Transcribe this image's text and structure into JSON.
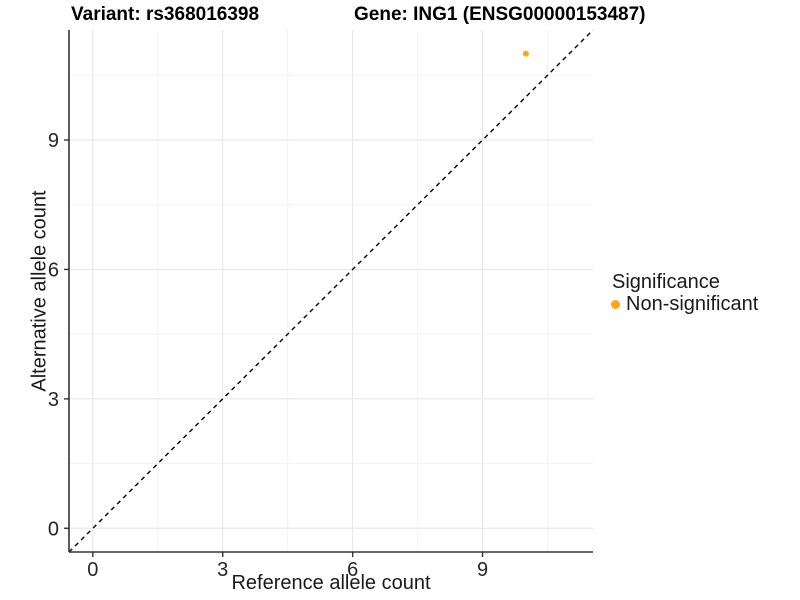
{
  "chart_data": {
    "type": "scatter",
    "title_left": "Variant: rs368016398",
    "title_right": "Gene: ING1 (ENSG00000153487)",
    "xlabel": "Reference allele count",
    "ylabel": "Alternative allele count",
    "xlim": [
      -0.55,
      11.55
    ],
    "ylim": [
      -0.55,
      11.55
    ],
    "xticks": [
      0,
      3,
      6,
      9
    ],
    "yticks": [
      0,
      3,
      6,
      9
    ],
    "xticks_minor": [
      1.5,
      4.5,
      7.5,
      10.5
    ],
    "yticks_minor": [
      1.5,
      4.5,
      7.5,
      10.5
    ],
    "grid": "major+minor",
    "identity_line": {
      "slope": 1,
      "intercept": 0,
      "style": "dashed",
      "color": "#000000"
    },
    "series": [
      {
        "name": "Non-significant",
        "color": "#FFA41B",
        "points": [
          {
            "x": 10,
            "y": 11
          }
        ]
      }
    ],
    "legend": {
      "title": "Significance",
      "position": "right",
      "entries": [
        {
          "label": "Non-significant",
          "color": "#FFA41B"
        }
      ]
    },
    "colors": {
      "grid_major": "#E5E5E5",
      "grid_minor": "#F2F2F2",
      "axis": "#333333",
      "tick_text": "#262626",
      "title_text": "#000000"
    }
  }
}
